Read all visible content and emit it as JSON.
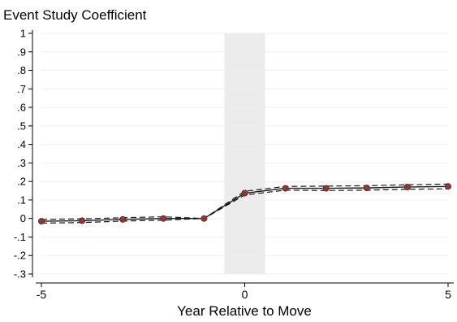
{
  "chart_data": {
    "type": "line",
    "title": "Event Study Coefficient",
    "xlabel": "Year Relative to Move",
    "ylabel": "",
    "xlim": [
      -5,
      5
    ],
    "ylim": [
      -0.3,
      1
    ],
    "x_ticks": [
      {
        "value": -5,
        "label": "-5"
      },
      {
        "value": 0,
        "label": "0"
      },
      {
        "value": 5,
        "label": "5"
      }
    ],
    "y_ticks": [
      {
        "value": 1,
        "label": "1"
      },
      {
        "value": 0.9,
        "label": ".9"
      },
      {
        "value": 0.8,
        "label": ".8"
      },
      {
        "value": 0.7,
        "label": ".7"
      },
      {
        "value": 0.6,
        "label": ".6"
      },
      {
        "value": 0.5,
        "label": ".5"
      },
      {
        "value": 0.4,
        "label": ".4"
      },
      {
        "value": 0.3,
        "label": ".3"
      },
      {
        "value": 0.2,
        "label": ".2"
      },
      {
        "value": 0.1,
        "label": ".1"
      },
      {
        "value": 0,
        "label": "0"
      },
      {
        "value": -0.1,
        "label": "-.1"
      },
      {
        "value": -0.2,
        "label": "-.2"
      },
      {
        "value": -0.3,
        "label": "-.3"
      }
    ],
    "shaded_region": {
      "x_from": -0.5,
      "x_to": 0.5
    },
    "grid": true,
    "x": [
      -5,
      -4,
      -3,
      -2,
      -1,
      0,
      1,
      2,
      3,
      4,
      5
    ],
    "series": [
      {
        "values": [
          -0.015,
          -0.012,
          -0.005,
          0.0,
          0.0,
          0.137,
          0.163,
          0.163,
          0.165,
          0.17,
          0.173
        ]
      },
      {
        "values": [
          -0.005,
          -0.002,
          0.004,
          0.009,
          0.0,
          0.147,
          0.173,
          0.175,
          0.177,
          0.182,
          0.186
        ]
      },
      {
        "values": [
          -0.025,
          -0.022,
          -0.014,
          -0.009,
          0.0,
          0.127,
          0.153,
          0.151,
          0.153,
          0.158,
          0.16
        ]
      }
    ],
    "colors": {
      "line": "#1a1a1a",
      "marker_fill": "#8b3a3a",
      "marker_stroke": "#5a1f1f",
      "band": "#ebebeb",
      "grid": "#eeeeee"
    }
  }
}
